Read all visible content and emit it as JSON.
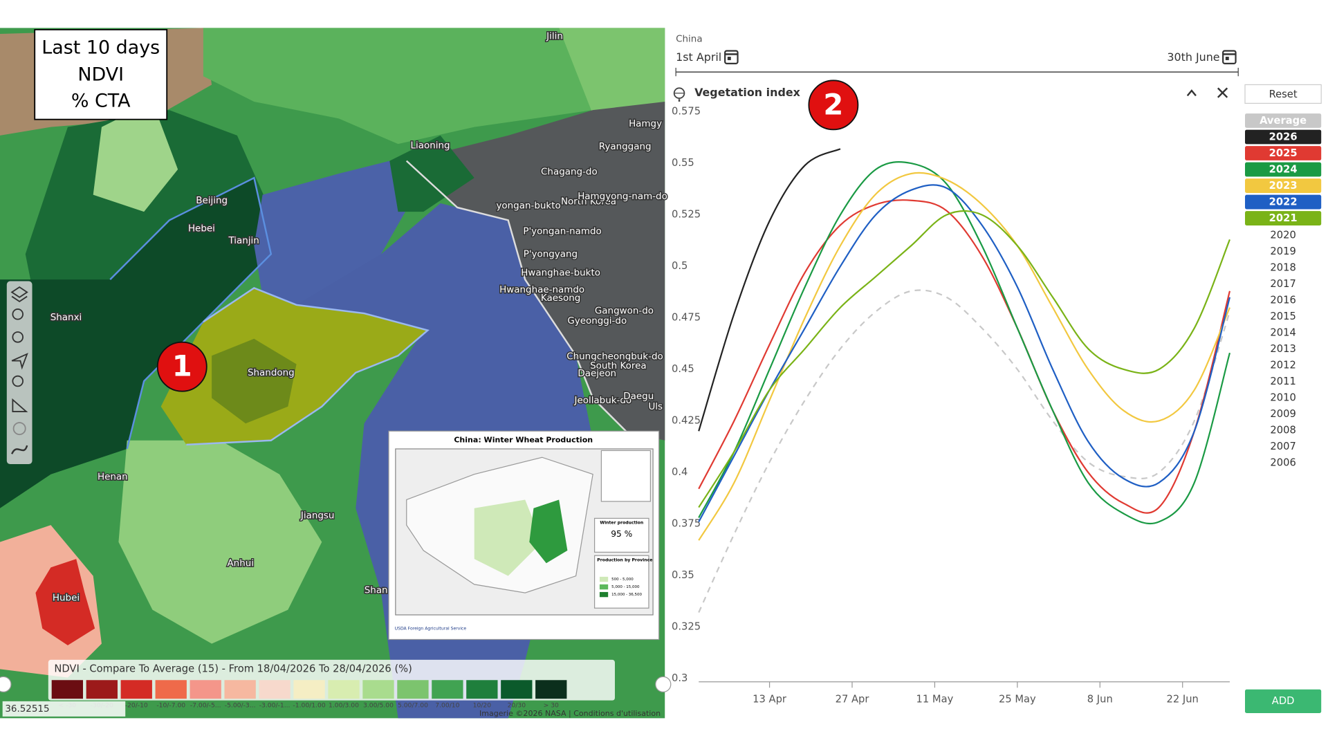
{
  "map": {
    "info_box": [
      "Last 10 days",
      "NDVI",
      "% CTA"
    ],
    "places": [
      "Jilin",
      "Liaoning",
      "Hamgy",
      "Ryanggang",
      "Chagang-do",
      "yongan-bukto",
      "North Korea",
      "Hamgyong-nam-do",
      "P'yongan-namdo",
      "Beijing",
      "Hebei",
      "Tianjin",
      "P'yongyang",
      "Hwanghae-bukto",
      "Hwanghae-namdo",
      "Kaesong",
      "Gangwon-do",
      "Gyeonggi-do",
      "Shanxi",
      "Shandong",
      "Chungcheongbuk-do",
      "South Korea",
      "Daejeon",
      "Jeollabuk-do",
      "Daegu",
      "Uls",
      "Henan",
      "Jiangsu",
      "Anhui",
      "Hubei",
      "Shan"
    ],
    "legend_title": "NDVI - Compare To Average (15) - From 18/04/2026 To 28/04/2026 (%)",
    "legend": [
      {
        "label": "< -30",
        "color": "#6b0d12"
      },
      {
        "label": "-30/-20",
        "color": "#9c1a1a"
      },
      {
        "label": "-20/-10",
        "color": "#d42b25"
      },
      {
        "label": "-10/-7.00",
        "color": "#ef6a4a"
      },
      {
        "label": "-7.00/-5...",
        "color": "#f4968a"
      },
      {
        "label": "-5.00/-3...",
        "color": "#f6b8a0"
      },
      {
        "label": "-3.00/-1...",
        "color": "#f7d9cc"
      },
      {
        "label": "-1.00/1.00",
        "color": "#f5eec4"
      },
      {
        "label": "1.00/3.00",
        "color": "#d8edb0"
      },
      {
        "label": "3.00/5.00",
        "color": "#a9dc8e"
      },
      {
        "label": "5.00/7.00",
        "color": "#7cc46e"
      },
      {
        "label": "7.00/10",
        "color": "#41a352"
      },
      {
        "label": "10/20",
        "color": "#1f7f3c"
      },
      {
        "label": "20/30",
        "color": "#0b5a2b"
      },
      {
        "label": "> 30",
        "color": "#0b2f1c"
      }
    ],
    "coordinates": "36.52515",
    "attribution": "Imagerie ©2026 NASA | Conditions d'utilisation",
    "inset": {
      "title": "China: Winter Wheat Production",
      "note_title": "Winter production",
      "share": "95 %",
      "province_title": "Production by Province",
      "classes": [
        "500 - 5,000",
        "5,000 - 15,000",
        "15,000 - 36,500"
      ],
      "agency": "USDA Foreign Agricultural Service"
    },
    "markers": [
      "1",
      "2"
    ]
  },
  "controls": {
    "country": "China",
    "start": "1st April",
    "end": "30th June",
    "reset": "Reset",
    "add": "ADD"
  },
  "chart_data": {
    "type": "line",
    "title": "Vegetation index",
    "x": [
      0,
      6,
      12,
      18,
      24,
      30,
      36,
      42,
      48,
      54,
      60,
      66,
      72,
      78,
      84,
      90
    ],
    "xlim": [
      0,
      90
    ],
    "xticks": [
      {
        "value": 12,
        "label": "13 Apr"
      },
      {
        "value": 26,
        "label": "27 Apr"
      },
      {
        "value": 40,
        "label": "11 May"
      },
      {
        "value": 54,
        "label": "25 May"
      },
      {
        "value": 68,
        "label": "8 Jun"
      },
      {
        "value": 82,
        "label": "22 Jun"
      }
    ],
    "ylim": [
      0.3,
      0.575
    ],
    "yticks": [
      0.3,
      0.325,
      0.35,
      0.375,
      0.4,
      0.425,
      0.45,
      0.475,
      0.5,
      0.525,
      0.55,
      0.575
    ],
    "grid": false,
    "series": [
      {
        "name": "Average",
        "color": "#c8c8c8",
        "dashed": true,
        "values": [
          0.332,
          0.37,
          0.405,
          0.435,
          0.46,
          0.478,
          0.488,
          0.485,
          0.47,
          0.45,
          0.425,
          0.405,
          0.398,
          0.4,
          0.425,
          0.478
        ]
      },
      {
        "name": "2026",
        "color": "#222222",
        "values": [
          0.42,
          0.477,
          0.522,
          0.549,
          0.557,
          null,
          null,
          null,
          null,
          null,
          null,
          null,
          null,
          null,
          null,
          null
        ]
      },
      {
        "name": "2025",
        "color": "#e03a32",
        "values": [
          0.392,
          0.425,
          0.462,
          0.497,
          0.52,
          0.53,
          0.532,
          0.527,
          0.505,
          0.47,
          0.43,
          0.4,
          0.385,
          0.383,
          0.42,
          0.488
        ]
      },
      {
        "name": "2024",
        "color": "#1a9a44",
        "values": [
          0.378,
          0.41,
          0.45,
          0.49,
          0.525,
          0.547,
          0.55,
          0.54,
          0.51,
          0.47,
          0.43,
          0.395,
          0.38,
          0.376,
          0.395,
          0.458
        ]
      },
      {
        "name": "2023",
        "color": "#f2c840",
        "values": [
          0.367,
          0.395,
          0.435,
          0.475,
          0.51,
          0.535,
          0.545,
          0.542,
          0.53,
          0.51,
          0.48,
          0.45,
          0.43,
          0.425,
          0.44,
          0.48
        ]
      },
      {
        "name": "2022",
        "color": "#1f5fc4",
        "values": [
          0.376,
          0.408,
          0.44,
          0.47,
          0.5,
          0.525,
          0.537,
          0.538,
          0.52,
          0.49,
          0.45,
          0.415,
          0.397,
          0.395,
          0.42,
          0.485
        ]
      },
      {
        "name": "2021",
        "color": "#7ab317",
        "values": [
          0.383,
          0.41,
          0.44,
          0.46,
          0.48,
          0.495,
          0.51,
          0.525,
          0.525,
          0.51,
          0.485,
          0.46,
          0.45,
          0.45,
          0.47,
          0.513
        ]
      }
    ],
    "inactive_years": [
      "2020",
      "2019",
      "2018",
      "2017",
      "2016",
      "2015",
      "2014",
      "2013",
      "2012",
      "2011",
      "2010",
      "2009",
      "2008",
      "2007",
      "2006"
    ]
  }
}
